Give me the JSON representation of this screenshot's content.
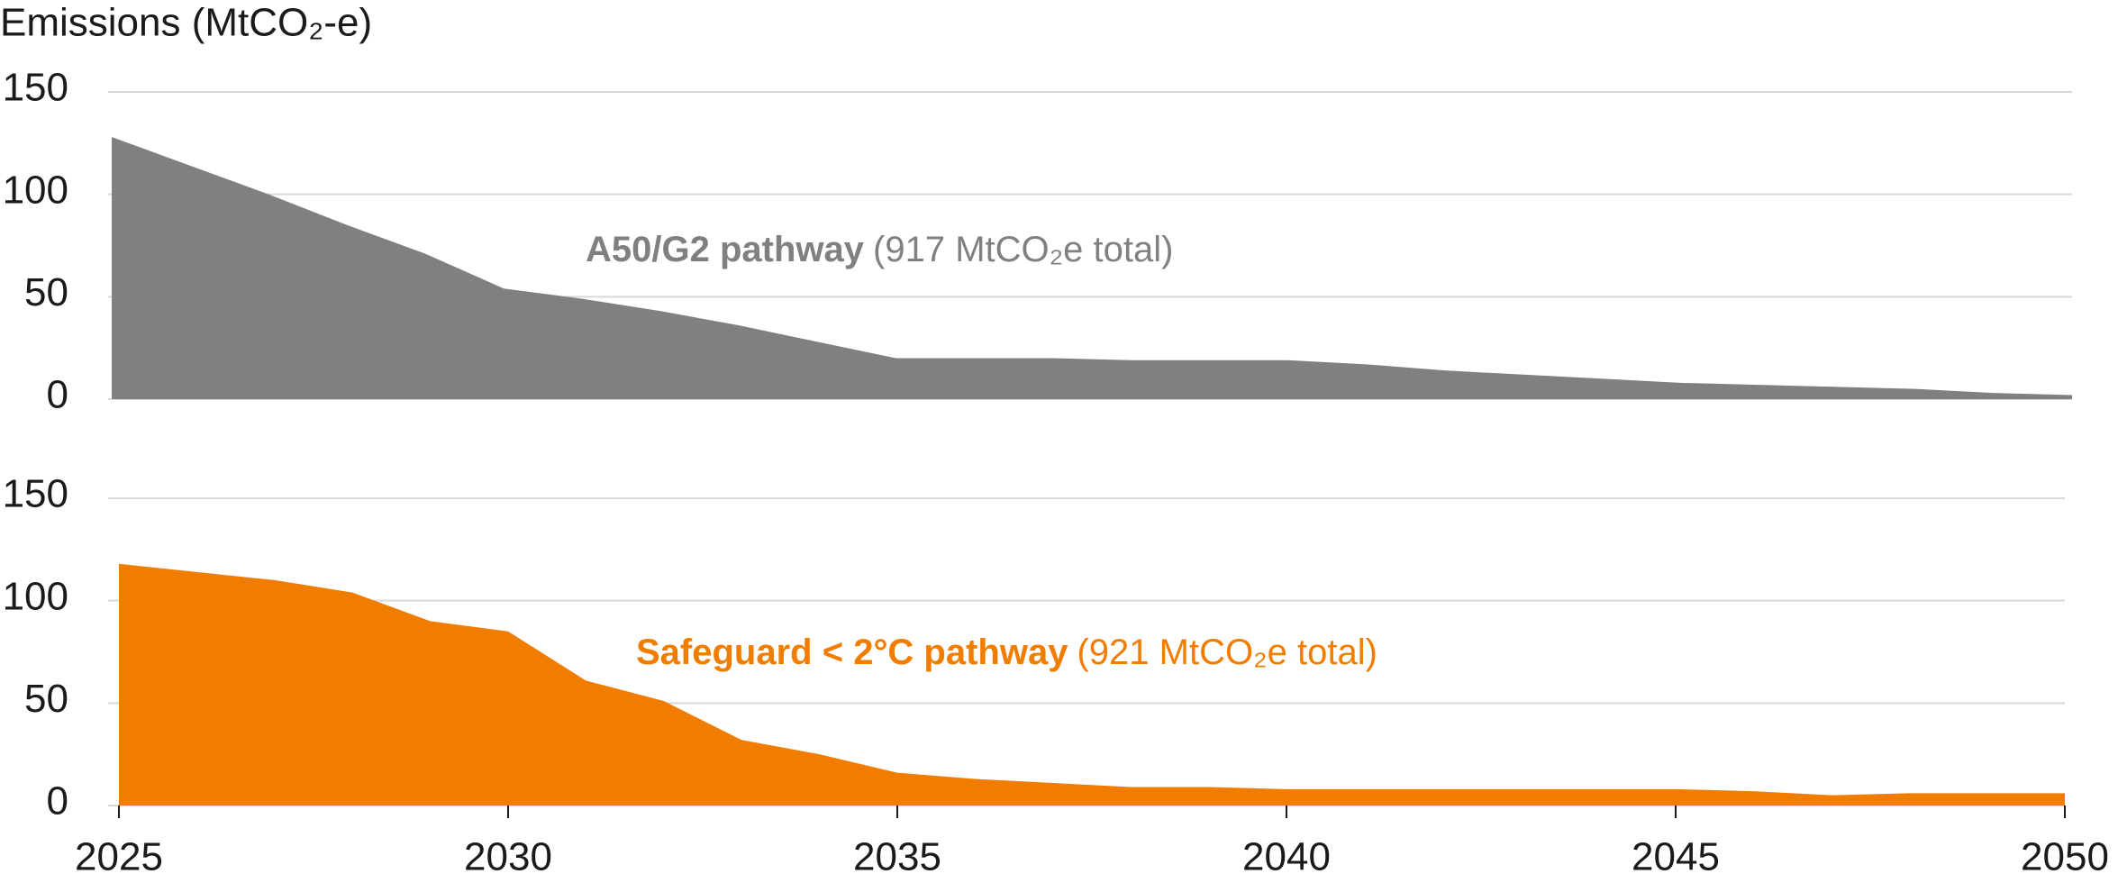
{
  "chart_data": [
    {
      "type": "area",
      "y_label": "Emissions (MtCO₂-e)",
      "x": [
        2025,
        2026,
        2027,
        2028,
        2029,
        2030,
        2031,
        2032,
        2033,
        2034,
        2035,
        2036,
        2037,
        2038,
        2039,
        2040,
        2041,
        2042,
        2043,
        2044,
        2045,
        2046,
        2047,
        2048,
        2049,
        2050
      ],
      "series": [
        {
          "name": "A50/G2 pathway",
          "color": "#808080",
          "values": [
            128,
            114,
            100,
            85,
            71,
            54,
            49,
            43,
            36,
            28,
            20,
            20,
            20,
            19,
            19,
            19,
            17,
            14,
            12,
            10,
            8,
            7,
            6,
            5,
            3,
            2
          ]
        }
      ],
      "annotation": "(917 MtCO₂e total)",
      "xlim": [
        2025,
        2050
      ],
      "ylim": [
        0,
        150
      ],
      "yticks": [
        0,
        50,
        100,
        150
      ],
      "grid": true
    },
    {
      "type": "area",
      "x": [
        2025,
        2026,
        2027,
        2028,
        2029,
        2030,
        2031,
        2032,
        2033,
        2034,
        2035,
        2036,
        2037,
        2038,
        2039,
        2040,
        2041,
        2042,
        2043,
        2044,
        2045,
        2046,
        2047,
        2048,
        2049,
        2050
      ],
      "series": [
        {
          "name": "Safeguard < 2°C pathway",
          "color": "#f07d00",
          "values": [
            118,
            114,
            110,
            104,
            90,
            85,
            61,
            51,
            32,
            25,
            16,
            13,
            11,
            9,
            9,
            8,
            8,
            8,
            8,
            8,
            8,
            7,
            5,
            6,
            6,
            6
          ]
        }
      ],
      "annotation": "(921 MtCO₂e total)",
      "xlim": [
        2025,
        2050
      ],
      "xticks": [
        2025,
        2030,
        2035,
        2040,
        2045,
        2050
      ],
      "ylim": [
        0,
        150
      ],
      "yticks": [
        0,
        50,
        100,
        150
      ],
      "grid": true
    }
  ]
}
